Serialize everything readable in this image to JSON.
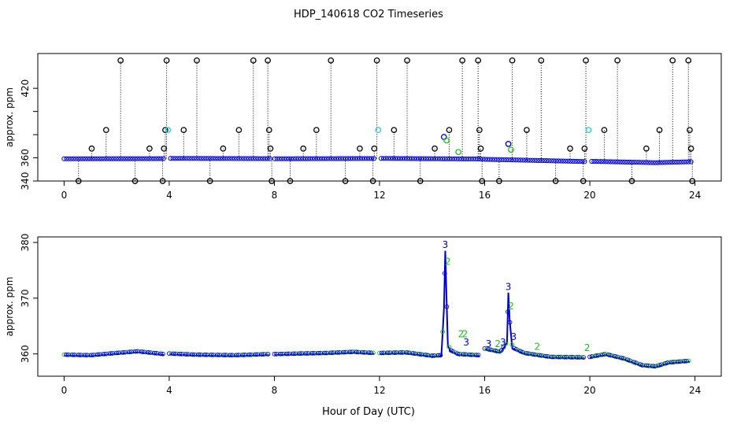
{
  "figure": {
    "title": "HDP_140618  CO2 Timeseries",
    "xlabel": "Hour of Day (UTC)"
  },
  "colors": {
    "blue": "#0000cc",
    "green": "#22bb22",
    "cyan": "#22cccc",
    "black": "#000000"
  },
  "chart_data": [
    {
      "type": "scatter",
      "title": "",
      "xlabel": "",
      "ylabel": "approx. ppm",
      "xlim": [
        -1,
        25
      ],
      "ylim": [
        340,
        450
      ],
      "x_ticks": [
        0,
        4,
        8,
        12,
        16,
        20,
        24
      ],
      "y_ticks": [
        340,
        360,
        380,
        400,
        420
      ],
      "y_tick_labels": [
        "340",
        "360",
        "",
        "",
        "420"
      ],
      "baseline": [
        [
          0,
          359.2
        ],
        [
          3.8,
          359.3
        ],
        [
          4.0,
          359.5
        ],
        [
          7.8,
          359.3
        ],
        [
          8.0,
          359.2
        ],
        [
          11.8,
          359.4
        ],
        [
          12.0,
          359.5
        ],
        [
          15.8,
          359.0
        ],
        [
          16.0,
          358.7
        ],
        [
          17.5,
          358.0
        ],
        [
          19.8,
          356.8
        ],
        [
          20.0,
          357.0
        ],
        [
          21.5,
          356.3
        ],
        [
          22.5,
          355.8
        ],
        [
          23.8,
          356.6
        ]
      ],
      "gaps": [
        [
          3.85,
          3.98
        ],
        [
          7.85,
          8.0
        ],
        [
          11.85,
          12.0
        ],
        [
          19.85,
          20.0
        ]
      ],
      "outliers": {
        "color": "#000000",
        "points": [
          [
            0.55,
            340
          ],
          [
            1.05,
            368
          ],
          [
            1.6,
            384
          ],
          [
            2.15,
            444
          ],
          [
            2.7,
            340
          ],
          [
            3.25,
            368
          ],
          [
            3.75,
            340
          ],
          [
            3.8,
            368
          ],
          [
            3.85,
            384
          ],
          [
            3.9,
            444
          ],
          [
            4.55,
            384
          ],
          [
            5.05,
            444
          ],
          [
            5.55,
            340
          ],
          [
            6.05,
            368
          ],
          [
            6.65,
            384
          ],
          [
            7.2,
            444
          ],
          [
            7.75,
            444
          ],
          [
            7.8,
            384
          ],
          [
            7.85,
            368
          ],
          [
            7.9,
            340
          ],
          [
            8.6,
            340
          ],
          [
            9.1,
            368
          ],
          [
            9.6,
            384
          ],
          [
            10.15,
            444
          ],
          [
            10.7,
            340
          ],
          [
            11.25,
            368
          ],
          [
            11.75,
            340
          ],
          [
            11.8,
            368
          ],
          [
            11.9,
            444
          ],
          [
            12.55,
            384
          ],
          [
            13.05,
            444
          ],
          [
            13.55,
            340
          ],
          [
            14.1,
            368
          ],
          [
            14.65,
            384
          ],
          [
            15.15,
            444
          ],
          [
            15.75,
            444
          ],
          [
            15.8,
            384
          ],
          [
            15.85,
            368
          ],
          [
            15.9,
            340
          ],
          [
            16.55,
            340
          ],
          [
            17.05,
            444
          ],
          [
            17.6,
            384
          ],
          [
            18.15,
            444
          ],
          [
            18.7,
            340
          ],
          [
            19.25,
            368
          ],
          [
            19.75,
            340
          ],
          [
            19.8,
            368
          ],
          [
            19.85,
            444
          ],
          [
            20.55,
            384
          ],
          [
            21.05,
            444
          ],
          [
            21.6,
            340
          ],
          [
            22.15,
            368
          ],
          [
            22.65,
            384
          ],
          [
            23.15,
            444
          ],
          [
            23.75,
            444
          ],
          [
            23.8,
            384
          ],
          [
            23.85,
            368
          ],
          [
            23.9,
            340
          ]
        ]
      },
      "highlights": [
        {
          "x": 3.95,
          "y": 384,
          "color": "#22cccc"
        },
        {
          "x": 11.95,
          "y": 384,
          "color": "#22cccc"
        },
        {
          "x": 19.95,
          "y": 384,
          "color": "#22cccc"
        },
        {
          "x": 14.45,
          "y": 378,
          "color": "#0000cc"
        },
        {
          "x": 14.55,
          "y": 375,
          "color": "#22bb22"
        },
        {
          "x": 15.0,
          "y": 365,
          "color": "#22bb22"
        },
        {
          "x": 16.9,
          "y": 372,
          "color": "#0000cc"
        },
        {
          "x": 17.0,
          "y": 367,
          "color": "#22bb22"
        }
      ]
    },
    {
      "type": "line",
      "title": "",
      "xlabel": "",
      "ylabel": "approx. ppm",
      "xlim": [
        -1,
        25
      ],
      "ylim": [
        356,
        381
      ],
      "x_ticks": [
        0,
        4,
        8,
        12,
        16,
        20,
        24
      ],
      "y_ticks": [
        360,
        370,
        380
      ],
      "series": [
        {
          "color": "#0000cc",
          "segments": [
            [
              [
                0,
                359.7
              ],
              [
                1.0,
                359.6
              ],
              [
                2.0,
                360.0
              ],
              [
                2.8,
                360.3
              ],
              [
                3.8,
                359.8
              ]
            ],
            [
              [
                4.0,
                359.9
              ],
              [
                5.0,
                359.7
              ],
              [
                6.5,
                359.6
              ],
              [
                7.8,
                359.8
              ]
            ],
            [
              [
                8.0,
                359.8
              ],
              [
                9.0,
                359.9
              ],
              [
                10.0,
                360.0
              ],
              [
                11.0,
                360.2
              ],
              [
                11.8,
                360.0
              ]
            ],
            [
              [
                12.0,
                360.0
              ],
              [
                13.0,
                360.1
              ],
              [
                14.0,
                359.5
              ],
              [
                14.35,
                359.6
              ],
              [
                14.45,
                368.0
              ],
              [
                14.5,
                378.5
              ],
              [
                14.55,
                370.0
              ],
              [
                14.6,
                361.5
              ],
              [
                14.7,
                360.5
              ],
              [
                15.0,
                359.8
              ],
              [
                15.8,
                359.6
              ]
            ],
            [
              [
                16.0,
                360.8
              ],
              [
                16.6,
                360.2
              ],
              [
                16.85,
                362.0
              ],
              [
                16.9,
                371.0
              ],
              [
                16.95,
                366.0
              ],
              [
                17.05,
                361.0
              ],
              [
                17.5,
                360.0
              ],
              [
                18.5,
                359.3
              ],
              [
                19.8,
                359.2
              ]
            ],
            [
              [
                20.0,
                359.3
              ],
              [
                20.6,
                359.8
              ],
              [
                21.3,
                359.0
              ],
              [
                22.0,
                357.8
              ],
              [
                22.5,
                357.6
              ],
              [
                23.0,
                358.3
              ],
              [
                23.8,
                358.6
              ]
            ]
          ]
        }
      ],
      "digit_labels": [
        {
          "x": 14.5,
          "y": 379,
          "text": "3",
          "color": "#0000cc"
        },
        {
          "x": 14.6,
          "y": 376,
          "text": "2",
          "color": "#22bb22"
        },
        {
          "x": 16.9,
          "y": 371.5,
          "text": "3",
          "color": "#0000cc"
        },
        {
          "x": 17.0,
          "y": 368,
          "text": "2",
          "color": "#22bb22"
        },
        {
          "x": 15.1,
          "y": 363,
          "text": "2",
          "color": "#22bb22"
        },
        {
          "x": 15.25,
          "y": 363,
          "text": "2",
          "color": "#22bb22"
        },
        {
          "x": 15.3,
          "y": 361.5,
          "text": "3",
          "color": "#0000cc"
        },
        {
          "x": 16.15,
          "y": 361.2,
          "text": "3",
          "color": "#0000cc"
        },
        {
          "x": 16.5,
          "y": 361.2,
          "text": "2",
          "color": "#22bb22"
        },
        {
          "x": 16.7,
          "y": 361.5,
          "text": "3",
          "color": "#0000cc"
        },
        {
          "x": 17.1,
          "y": 362.5,
          "text": "3",
          "color": "#0000cc"
        },
        {
          "x": 18.0,
          "y": 360.7,
          "text": "2",
          "color": "#22bb22"
        },
        {
          "x": 19.9,
          "y": 360.5,
          "text": "2",
          "color": "#22bb22"
        }
      ]
    }
  ]
}
